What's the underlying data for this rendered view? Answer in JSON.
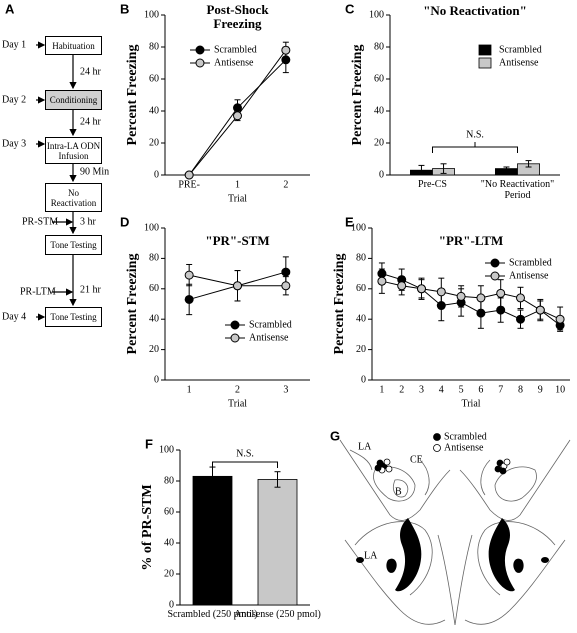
{
  "flowchart": {
    "label": "A",
    "days": [
      "Day 1",
      "Day 2",
      "Day 3",
      "Day 4"
    ],
    "boxes": [
      "Habituation",
      "Conditioning",
      "Intra-LA ODN Infusion",
      "No Reactivation",
      "Tone Testing",
      "Tone Testing"
    ],
    "intervals": [
      "24 hr",
      "24 hr",
      "90 Min",
      "3 hr",
      "21 hr"
    ],
    "test_labels": [
      "PR-STM",
      "PR-LTM"
    ]
  },
  "chart_data": [
    {
      "type": "line",
      "panel": "B",
      "title": "Post-Shock Freezing",
      "xlabel": "Trial",
      "ylabel": "Percent Freezing",
      "categories": [
        "PRE-",
        "1",
        "2"
      ],
      "series": [
        {
          "name": "Scrambled",
          "color": "#000000",
          "values": [
            0,
            42,
            72
          ],
          "errors": [
            0,
            5,
            8
          ]
        },
        {
          "name": "Antisense",
          "color": "#c8c8c8",
          "values": [
            0,
            37,
            78
          ],
          "errors": [
            0,
            3,
            5
          ]
        }
      ],
      "ylim": [
        0,
        100
      ],
      "yticks": [
        0,
        20,
        40,
        60,
        80,
        100
      ],
      "legend": "upper left"
    },
    {
      "type": "bar",
      "panel": "C",
      "title": "\"No Reactivation\"",
      "ylabel": "Percent Freezing",
      "categories": [
        "Pre-CS",
        "\"No Reactivation\" Period"
      ],
      "series": [
        {
          "name": "Scrambled",
          "color": "#000000",
          "values": [
            3,
            4
          ],
          "errors": [
            3,
            1
          ]
        },
        {
          "name": "Antisense",
          "color": "#c8c8c8",
          "values": [
            4,
            7
          ],
          "errors": [
            3,
            2
          ]
        }
      ],
      "ylim": [
        0,
        100
      ],
      "yticks": [
        0,
        20,
        40,
        60,
        80,
        100
      ],
      "legend": "upper right",
      "annotation": "N.S."
    },
    {
      "type": "line",
      "panel": "D",
      "title": "\"PR\"-STM",
      "xlabel": "Trial",
      "ylabel": "Percent Freezing",
      "categories": [
        "1",
        "2",
        "3"
      ],
      "series": [
        {
          "name": "Scrambled",
          "color": "#000000",
          "values": [
            53,
            62,
            71
          ],
          "errors": [
            10,
            10,
            10
          ]
        },
        {
          "name": "Antisense",
          "color": "#c8c8c8",
          "values": [
            69,
            62,
            62
          ],
          "errors": [
            7,
            10,
            6
          ]
        }
      ],
      "ylim": [
        0,
        100
      ],
      "yticks": [
        0,
        20,
        40,
        60,
        80,
        100
      ],
      "legend": "lower right"
    },
    {
      "type": "line",
      "panel": "E",
      "title": "\"PR\"-LTM",
      "xlabel": "Trial",
      "ylabel": "Percent Freezing",
      "categories": [
        "1",
        "2",
        "3",
        "4",
        "5",
        "6",
        "7",
        "8",
        "9",
        "10"
      ],
      "series": [
        {
          "name": "Scrambled",
          "color": "#000000",
          "values": [
            70,
            66,
            60,
            49,
            51,
            44,
            46,
            40,
            46,
            36
          ],
          "errors": [
            7,
            7,
            7,
            10,
            9,
            10,
            8,
            6,
            7,
            3
          ]
        },
        {
          "name": "Antisense",
          "color": "#c8c8c8",
          "values": [
            65,
            62,
            60,
            58,
            55,
            54,
            57,
            54,
            46,
            40
          ],
          "errors": [
            8,
            6,
            6,
            9,
            7,
            8,
            9,
            7,
            6,
            8
          ]
        }
      ],
      "ylim": [
        0,
        100
      ],
      "yticks": [
        0,
        20,
        40,
        60,
        80,
        100
      ],
      "legend": "upper right"
    },
    {
      "type": "bar",
      "panel": "F",
      "ylabel": "% of PR-STM",
      "categories": [
        "Scrambled (250 pmol)",
        "Antisense (250 pmol)"
      ],
      "values": [
        83,
        81
      ],
      "errors": [
        6,
        5
      ],
      "colors": [
        "#000000",
        "#c8c8c8"
      ],
      "ylim": [
        0,
        100
      ],
      "yticks": [
        0,
        20,
        40,
        60,
        80,
        100
      ],
      "annotation": "N.S."
    }
  ],
  "brain_map": {
    "label": "G",
    "legend": [
      "Scrambled",
      "Antisense"
    ],
    "regions": [
      "LA",
      "CE",
      "B",
      "LA"
    ]
  }
}
